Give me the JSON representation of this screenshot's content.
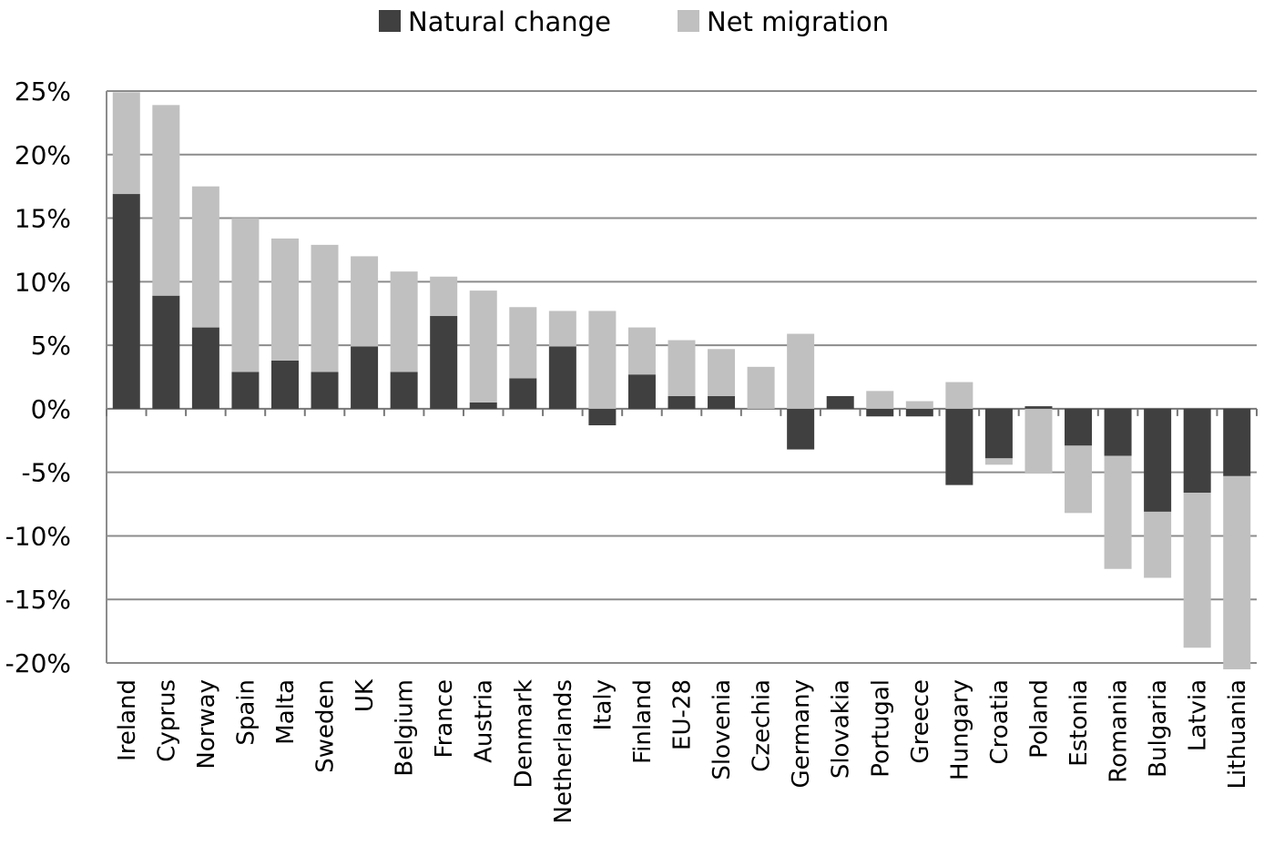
{
  "chart_data": {
    "type": "bar",
    "stacked": true,
    "title": "",
    "xlabel": "",
    "ylabel": "",
    "ylim": [
      -20,
      25
    ],
    "yticks": [
      "25%",
      "20%",
      "15%",
      "10%",
      "5%",
      "0%",
      "-5%",
      "-10%",
      "-15%",
      "-20%"
    ],
    "grid": true,
    "legend_position": "top",
    "categories": [
      "Ireland",
      "Cyprus",
      "Norway",
      "Spain",
      "Malta",
      "Sweden",
      "UK",
      "Belgium",
      "France",
      "Austria",
      "Denmark",
      "Netherlands",
      "Italy",
      "Finland",
      "EU-28",
      "Slovenia",
      "Czechia",
      "Germany",
      "Slovakia",
      "Portugal",
      "Greece",
      "Hungary",
      "Croatia",
      "Poland",
      "Estonia",
      "Romania",
      "Bulgaria",
      "Latvia",
      "Lithuania"
    ],
    "series": [
      {
        "name": "Natural change",
        "color": "#404040",
        "values": [
          16.9,
          8.9,
          6.4,
          2.9,
          3.8,
          2.9,
          4.9,
          2.9,
          7.3,
          0.5,
          2.4,
          4.9,
          -1.3,
          2.7,
          1.0,
          1.0,
          0.0,
          -3.2,
          1.0,
          -0.6,
          -0.6,
          -6.0,
          -3.9,
          0.2,
          -2.9,
          -3.7,
          -8.1,
          -6.6,
          -5.3
        ]
      },
      {
        "name": "Net migration",
        "color": "#c0c0c0",
        "values": [
          8.0,
          15.0,
          11.1,
          12.1,
          9.6,
          10.0,
          7.1,
          7.9,
          3.1,
          8.8,
          5.6,
          2.8,
          7.7,
          3.7,
          4.4,
          3.7,
          3.3,
          5.9,
          0.0,
          1.4,
          0.6,
          2.1,
          -0.5,
          -5.1,
          -5.3,
          -8.9,
          -5.2,
          -12.2,
          -15.2
        ]
      }
    ]
  }
}
